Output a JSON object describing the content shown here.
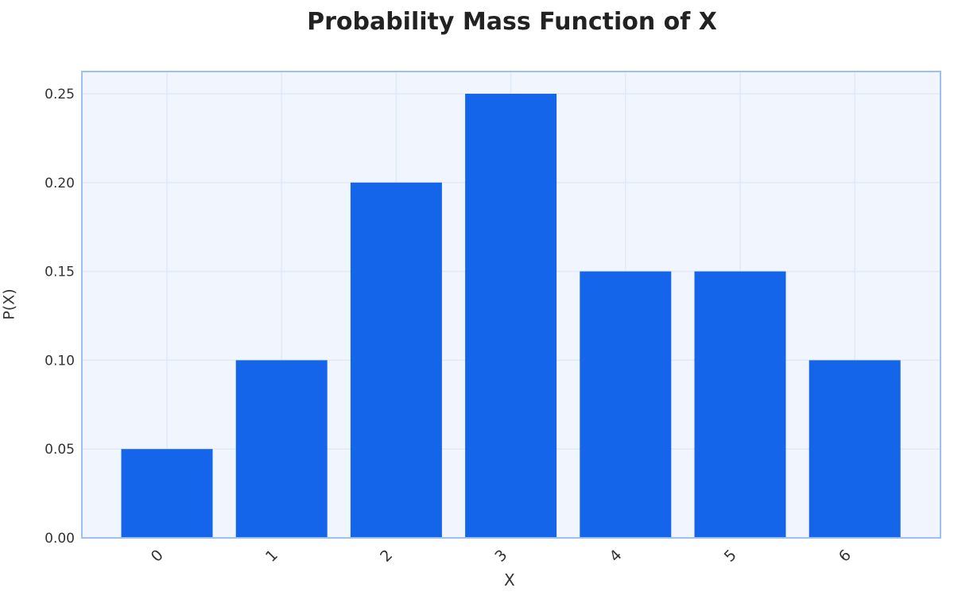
{
  "chart_data": {
    "type": "bar",
    "title": "Probability Mass Function of X",
    "xlabel": "X",
    "ylabel": "P(X)",
    "categories": [
      "0",
      "1",
      "2",
      "3",
      "4",
      "5",
      "6"
    ],
    "values": [
      0.05,
      0.1,
      0.2,
      0.25,
      0.15,
      0.15,
      0.1
    ],
    "yticks": [
      "0.00",
      "0.05",
      "0.10",
      "0.15",
      "0.20",
      "0.25"
    ],
    "ylim": [
      0,
      0.2625
    ],
    "grid": true,
    "xtick_rotation": 45,
    "colors": {
      "bar": "#1565eb",
      "plot_bg": "#f1f6fe",
      "frame": "#9dbff2",
      "grid": "#e0e9fa"
    }
  }
}
